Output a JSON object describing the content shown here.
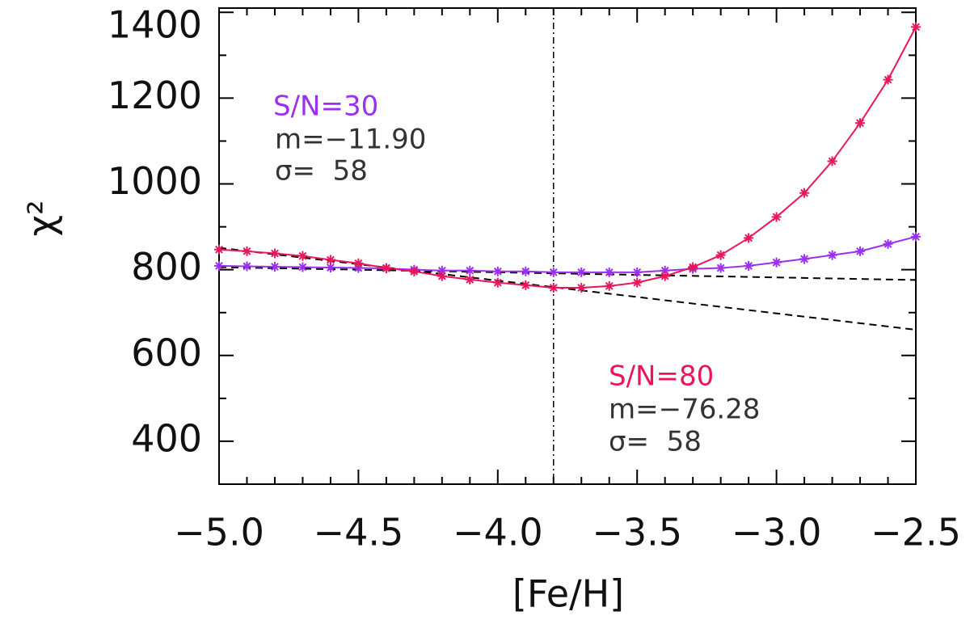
{
  "chart_data": {
    "type": "line",
    "xlabel": "[Fe/H]",
    "ylabel": "χ²",
    "x": [
      -5.0,
      -4.9,
      -4.8,
      -4.7,
      -4.6,
      -4.5,
      -4.4,
      -4.3,
      -4.2,
      -4.1,
      -4.0,
      -3.9,
      -3.8,
      -3.7,
      -3.6,
      -3.5,
      -3.4,
      -3.3,
      -3.2,
      -3.1,
      -3.0,
      -2.9,
      -2.8,
      -2.7,
      -2.6,
      -2.5
    ],
    "series": [
      {
        "color": "#9b30f0",
        "values": [
          809,
          808,
          807,
          806,
          805,
          804,
          803,
          800,
          798,
          798,
          796,
          796,
          794,
          794,
          794,
          794,
          798,
          802,
          804,
          809,
          817,
          825,
          834,
          843,
          860,
          877
        ]
      },
      {
        "color": "#e8175d",
        "values": [
          847,
          843,
          838,
          832,
          823,
          815,
          804,
          796,
          785,
          777,
          770,
          764,
          758,
          758,
          762,
          770,
          785,
          806,
          834,
          874,
          923,
          979,
          1053,
          1142,
          1243,
          1366
        ]
      }
    ],
    "fit_lines": [
      {
        "color": "#000000",
        "x": [
          -5.0,
          -2.5
        ],
        "values": [
          806,
          776
        ]
      },
      {
        "color": "#000000",
        "x": [
          -5.0,
          -2.5
        ],
        "values": [
          851,
          660
        ]
      }
    ],
    "reference_x": -3.8,
    "xlim": [
      -5.0,
      -2.5
    ],
    "ylim": [
      300,
      1410
    ],
    "xticks": [
      {
        "value": -5.0,
        "label": "−5.0"
      },
      {
        "value": -4.5,
        "label": "−4.5"
      },
      {
        "value": -4.0,
        "label": "−4.0"
      },
      {
        "value": -3.5,
        "label": "−3.5"
      },
      {
        "value": -3.0,
        "label": "−3.0"
      },
      {
        "value": -2.5,
        "label": "−2.5"
      }
    ],
    "yticks": [
      400,
      600,
      800,
      1000,
      1200,
      1400
    ],
    "xminorticks": [
      -4.9,
      -4.8,
      -4.7,
      -4.6,
      -4.4,
      -4.3,
      -4.2,
      -4.1,
      -3.9,
      -3.8,
      -3.7,
      -3.6,
      -3.4,
      -3.3,
      -3.2,
      -3.1,
      -2.9,
      -2.8,
      -2.7,
      -2.6
    ],
    "yminorticks": [
      500,
      700,
      900,
      1100,
      1300
    ],
    "annotations": [
      {
        "text": "S/N=30",
        "color": "#9b30f0"
      },
      {
        "text": "m=−11.90",
        "color": "#333333"
      },
      {
        "text": "σ=  58",
        "color": "#333333"
      },
      {
        "text": "S/N=80",
        "color": "#e8175d"
      },
      {
        "text": "m=−76.28",
        "color": "#333333"
      },
      {
        "text": "σ=  58",
        "color": "#333333"
      }
    ]
  }
}
